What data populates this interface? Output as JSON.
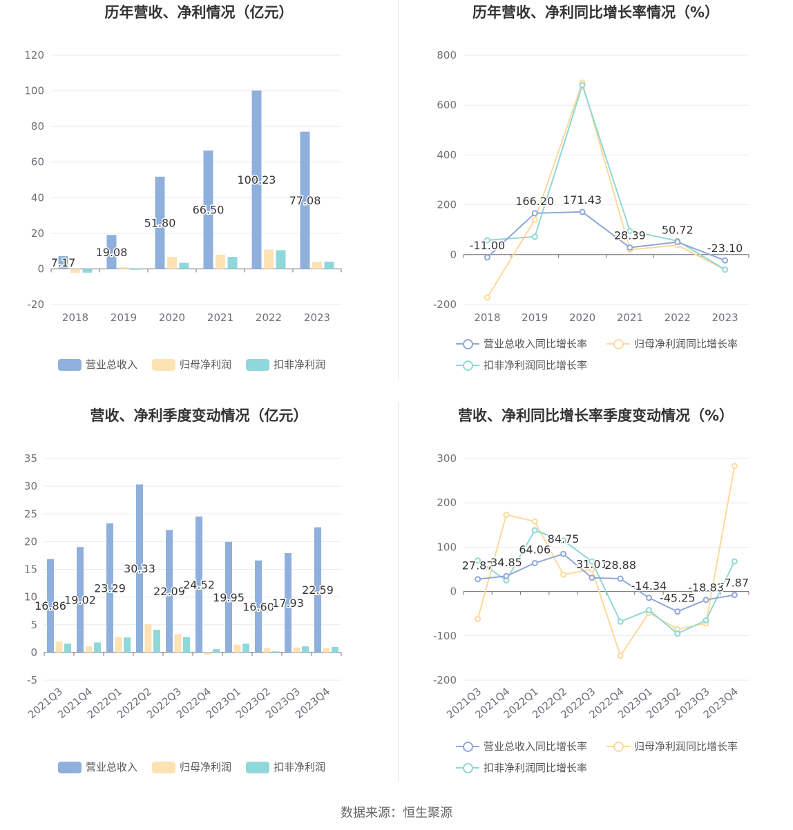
{
  "source": "数据来源：恒生聚源",
  "colors": {
    "revenue": "#8fb0dc",
    "net_profit": "#fde3b3",
    "deducted_profit": "#8fd8da",
    "revenue_line": "#8fa7d6",
    "net_profit_line": "#fcd99a",
    "deducted_line": "#8fd8d4",
    "grid": "#e6e9f2",
    "axis": "#6e7079"
  },
  "chart_data": [
    {
      "type": "bar",
      "title": "历年营收、净利情况（亿元）",
      "categories": [
        "2018",
        "2019",
        "2020",
        "2021",
        "2022",
        "2023"
      ],
      "ylim": [
        -20,
        120
      ],
      "yticks": [
        -20,
        0,
        20,
        40,
        60,
        80,
        100,
        120
      ],
      "grid": true,
      "legend_position": "bottom",
      "series": [
        {
          "name": "营业总收入",
          "values": [
            7.17,
            19.08,
            51.8,
            66.5,
            100.23,
            77.08
          ],
          "labels": [
            "7.17",
            "19.08",
            "51.80",
            "66.50",
            "100.23",
            "77.08"
          ]
        },
        {
          "name": "归母净利润",
          "values": [
            -2.2,
            0.9,
            6.8,
            8.0,
            10.8,
            4.0
          ]
        },
        {
          "name": "扣非净利润",
          "values": [
            -2.1,
            -0.5,
            3.4,
            6.7,
            10.5,
            4.1
          ]
        }
      ]
    },
    {
      "type": "line",
      "title": "历年营收、净利同比增长率情况（%）",
      "categories": [
        "2018",
        "2019",
        "2020",
        "2021",
        "2022",
        "2023"
      ],
      "ylim": [
        -200,
        800
      ],
      "yticks": [
        -200,
        0,
        200,
        400,
        600,
        800
      ],
      "grid": true,
      "legend_position": "bottom",
      "series": [
        {
          "name": "营业总收入同比增长率",
          "values": [
            -11.0,
            166.2,
            171.43,
            28.39,
            50.72,
            -23.1
          ],
          "labels": [
            "-11.00",
            "166.20",
            "171.43",
            "28.39",
            "50.72",
            "-23.10"
          ]
        },
        {
          "name": "归母净利润同比增长率",
          "values": [
            -172,
            140,
            690,
            20,
            38,
            -60
          ]
        },
        {
          "name": "扣非净利润同比增长率",
          "values": [
            58,
            72,
            680,
            95,
            55,
            -60
          ]
        }
      ]
    },
    {
      "type": "bar",
      "title": "营收、净利季度变动情况（亿元）",
      "categories": [
        "2021Q3",
        "2021Q4",
        "2022Q1",
        "2022Q2",
        "2022Q3",
        "2022Q4",
        "2023Q1",
        "2023Q2",
        "2023Q3",
        "2023Q4"
      ],
      "ylim": [
        -5,
        35
      ],
      "yticks": [
        -5,
        0,
        5,
        10,
        15,
        20,
        25,
        30,
        35
      ],
      "grid": true,
      "legend_position": "bottom",
      "series": [
        {
          "name": "营业总收入",
          "values": [
            16.86,
            19.02,
            23.29,
            30.33,
            22.09,
            24.52,
            19.95,
            16.6,
            17.93,
            22.59
          ],
          "labels": [
            "16.86",
            "19.02",
            "23.29",
            "30.33",
            "22.09",
            "24.52",
            "19.95",
            "16.60",
            "17.93",
            "22.59"
          ]
        },
        {
          "name": "归母净利润",
          "values": [
            2.0,
            1.1,
            2.8,
            5.1,
            3.3,
            -0.4,
            1.4,
            0.8,
            0.9,
            0.8
          ]
        },
        {
          "name": "扣非净利润",
          "values": [
            1.6,
            1.8,
            2.7,
            4.1,
            2.8,
            0.6,
            1.6,
            0.2,
            1.1,
            1.0
          ]
        }
      ]
    },
    {
      "type": "line",
      "title": "营收、净利同比增长率季度变动情况（%）",
      "categories": [
        "2021Q3",
        "2021Q4",
        "2022Q1",
        "2022Q2",
        "2022Q3",
        "2022Q4",
        "2023Q1",
        "2023Q2",
        "2023Q3",
        "2023Q4"
      ],
      "ylim": [
        -200,
        300
      ],
      "yticks": [
        -200,
        -100,
        0,
        100,
        200,
        300
      ],
      "grid": true,
      "legend_position": "bottom",
      "series": [
        {
          "name": "营业总收入同比增长率",
          "values": [
            27.87,
            34.85,
            64.06,
            84.75,
            31.01,
            28.88,
            -14.34,
            -45.25,
            -18.83,
            -7.87
          ],
          "labels": [
            "27.87",
            "34.85",
            "64.06",
            "84.75",
            "31.01",
            "28.88",
            "-14.34",
            "-45.25",
            "-18.83",
            "-7.87"
          ]
        },
        {
          "name": "归母净利润同比增长率",
          "values": [
            -62,
            173,
            158,
            38,
            50,
            -145,
            -48,
            -85,
            -72,
            283
          ]
        },
        {
          "name": "扣非净利润同比增长率",
          "values": [
            70,
            25,
            138,
            115,
            68,
            -68,
            -42,
            -95,
            -65,
            68
          ]
        }
      ]
    }
  ]
}
